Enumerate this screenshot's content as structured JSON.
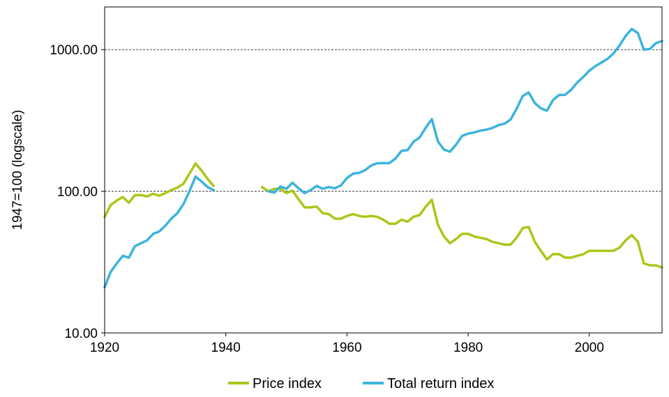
{
  "chart_data": {
    "type": "line",
    "title": "",
    "xlabel": "",
    "ylabel": "1947=100 (logscale)",
    "xlim": [
      1920,
      2012
    ],
    "ylim": [
      10,
      2000
    ],
    "yscale": "log",
    "x_ticks": [
      "1920",
      "1940",
      "1960",
      "1980",
      "2000"
    ],
    "x_tick_values": [
      1920,
      1940,
      1960,
      1980,
      2000
    ],
    "y_ticks": [
      "10.00",
      "100.00",
      "1000.00"
    ],
    "y_tick_values": [
      10,
      100,
      1000
    ],
    "gridlines": {
      "y": [
        100,
        1000
      ],
      "style": "dashed"
    },
    "legend": {
      "position": "bottom-center"
    },
    "series": [
      {
        "name": "Price index",
        "color": "#a8c818",
        "segments": [
          [
            [
              1920,
              66
            ],
            [
              1921,
              80
            ],
            [
              1922,
              86
            ],
            [
              1923,
              91
            ],
            [
              1924,
              83
            ],
            [
              1925,
              94
            ],
            [
              1926,
              94
            ],
            [
              1927,
              92
            ],
            [
              1928,
              96
            ],
            [
              1929,
              93
            ],
            [
              1930,
              97
            ],
            [
              1931,
              102
            ],
            [
              1932,
              106
            ],
            [
              1933,
              113
            ],
            [
              1934,
              133
            ],
            [
              1935,
              157
            ],
            [
              1936,
              140
            ],
            [
              1937,
              122
            ],
            [
              1938,
              109
            ]
          ],
          [
            [
              1946,
              107
            ],
            [
              1947,
              100
            ],
            [
              1948,
              104
            ],
            [
              1949,
              104
            ],
            [
              1950,
              97
            ],
            [
              1951,
              101
            ],
            [
              1952,
              88
            ],
            [
              1953,
              77
            ],
            [
              1954,
              77
            ],
            [
              1955,
              78
            ],
            [
              1956,
              70
            ],
            [
              1957,
              69
            ],
            [
              1958,
              64
            ],
            [
              1959,
              64
            ],
            [
              1960,
              67
            ],
            [
              1961,
              69
            ],
            [
              1962,
              67
            ],
            [
              1963,
              66
            ],
            [
              1964,
              67
            ],
            [
              1965,
              66
            ],
            [
              1966,
              63
            ],
            [
              1967,
              59
            ],
            [
              1968,
              59
            ],
            [
              1969,
              63
            ],
            [
              1970,
              61
            ],
            [
              1971,
              66
            ],
            [
              1972,
              68
            ],
            [
              1973,
              78
            ],
            [
              1974,
              87
            ],
            [
              1975,
              58
            ],
            [
              1976,
              48
            ],
            [
              1977,
              43
            ],
            [
              1978,
              46
            ],
            [
              1979,
              50
            ],
            [
              1980,
              50
            ],
            [
              1981,
              48
            ],
            [
              1982,
              47
            ],
            [
              1983,
              46
            ],
            [
              1984,
              44
            ],
            [
              1985,
              43
            ],
            [
              1986,
              42
            ],
            [
              1987,
              42
            ],
            [
              1988,
              47
            ],
            [
              1989,
              55
            ],
            [
              1990,
              56
            ],
            [
              1991,
              44
            ],
            [
              1992,
              38
            ],
            [
              1993,
              33
            ],
            [
              1994,
              36
            ],
            [
              1995,
              36
            ],
            [
              1996,
              34
            ],
            [
              1997,
              34
            ],
            [
              1998,
              35
            ],
            [
              1999,
              36
            ],
            [
              2000,
              38
            ],
            [
              2001,
              38
            ],
            [
              2002,
              38
            ],
            [
              2003,
              38
            ],
            [
              2004,
              38
            ],
            [
              2005,
              40
            ],
            [
              2006,
              45
            ],
            [
              2007,
              49
            ],
            [
              2008,
              44
            ],
            [
              2009,
              31
            ],
            [
              2010,
              30
            ],
            [
              2011,
              30
            ],
            [
              2012,
              29
            ]
          ]
        ]
      },
      {
        "name": "Total return index",
        "color": "#3cb4dc",
        "segments": [
          [
            [
              1920,
              21
            ],
            [
              1921,
              27
            ],
            [
              1922,
              31
            ],
            [
              1923,
              35
            ],
            [
              1924,
              34
            ],
            [
              1925,
              41
            ],
            [
              1926,
              43
            ],
            [
              1927,
              45
            ],
            [
              1928,
              50
            ],
            [
              1929,
              52
            ],
            [
              1930,
              57
            ],
            [
              1931,
              64
            ],
            [
              1932,
              70
            ],
            [
              1933,
              81
            ],
            [
              1934,
              100
            ],
            [
              1935,
              127
            ],
            [
              1936,
              117
            ],
            [
              1937,
              107
            ],
            [
              1938,
              102
            ]
          ],
          [
            [
              1947,
              100
            ],
            [
              1948,
              98
            ],
            [
              1949,
              108
            ],
            [
              1950,
              104
            ],
            [
              1951,
              115
            ],
            [
              1952,
              105
            ],
            [
              1953,
              97
            ],
            [
              1954,
              102
            ],
            [
              1955,
              109
            ],
            [
              1956,
              104
            ],
            [
              1957,
              107
            ],
            [
              1958,
              105
            ],
            [
              1959,
              110
            ],
            [
              1960,
              124
            ],
            [
              1961,
              133
            ],
            [
              1962,
              135
            ],
            [
              1963,
              141
            ],
            [
              1964,
              152
            ],
            [
              1965,
              158
            ],
            [
              1966,
              158
            ],
            [
              1967,
              158
            ],
            [
              1968,
              170
            ],
            [
              1969,
              193
            ],
            [
              1970,
              195
            ],
            [
              1971,
              224
            ],
            [
              1972,
              240
            ],
            [
              1973,
              281
            ],
            [
              1974,
              323
            ],
            [
              1975,
              225
            ],
            [
              1976,
              197
            ],
            [
              1977,
              190
            ],
            [
              1978,
              213
            ],
            [
              1979,
              246
            ],
            [
              1980,
              255
            ],
            [
              1981,
              260
            ],
            [
              1982,
              268
            ],
            [
              1983,
              272
            ],
            [
              1984,
              280
            ],
            [
              1985,
              293
            ],
            [
              1986,
              300
            ],
            [
              1987,
              321
            ],
            [
              1988,
              383
            ],
            [
              1989,
              470
            ],
            [
              1990,
              498
            ],
            [
              1991,
              420
            ],
            [
              1992,
              385
            ],
            [
              1993,
              370
            ],
            [
              1994,
              440
            ],
            [
              1995,
              478
            ],
            [
              1996,
              480
            ],
            [
              1997,
              520
            ],
            [
              1998,
              585
            ],
            [
              1999,
              640
            ],
            [
              2000,
              710
            ],
            [
              2001,
              765
            ],
            [
              2002,
              810
            ],
            [
              2003,
              860
            ],
            [
              2004,
              940
            ],
            [
              2005,
              1070
            ],
            [
              2006,
              1250
            ],
            [
              2007,
              1400
            ],
            [
              2008,
              1310
            ],
            [
              2009,
              1000
            ],
            [
              2010,
              1010
            ],
            [
              2011,
              1110
            ],
            [
              2012,
              1150
            ]
          ]
        ]
      }
    ]
  }
}
